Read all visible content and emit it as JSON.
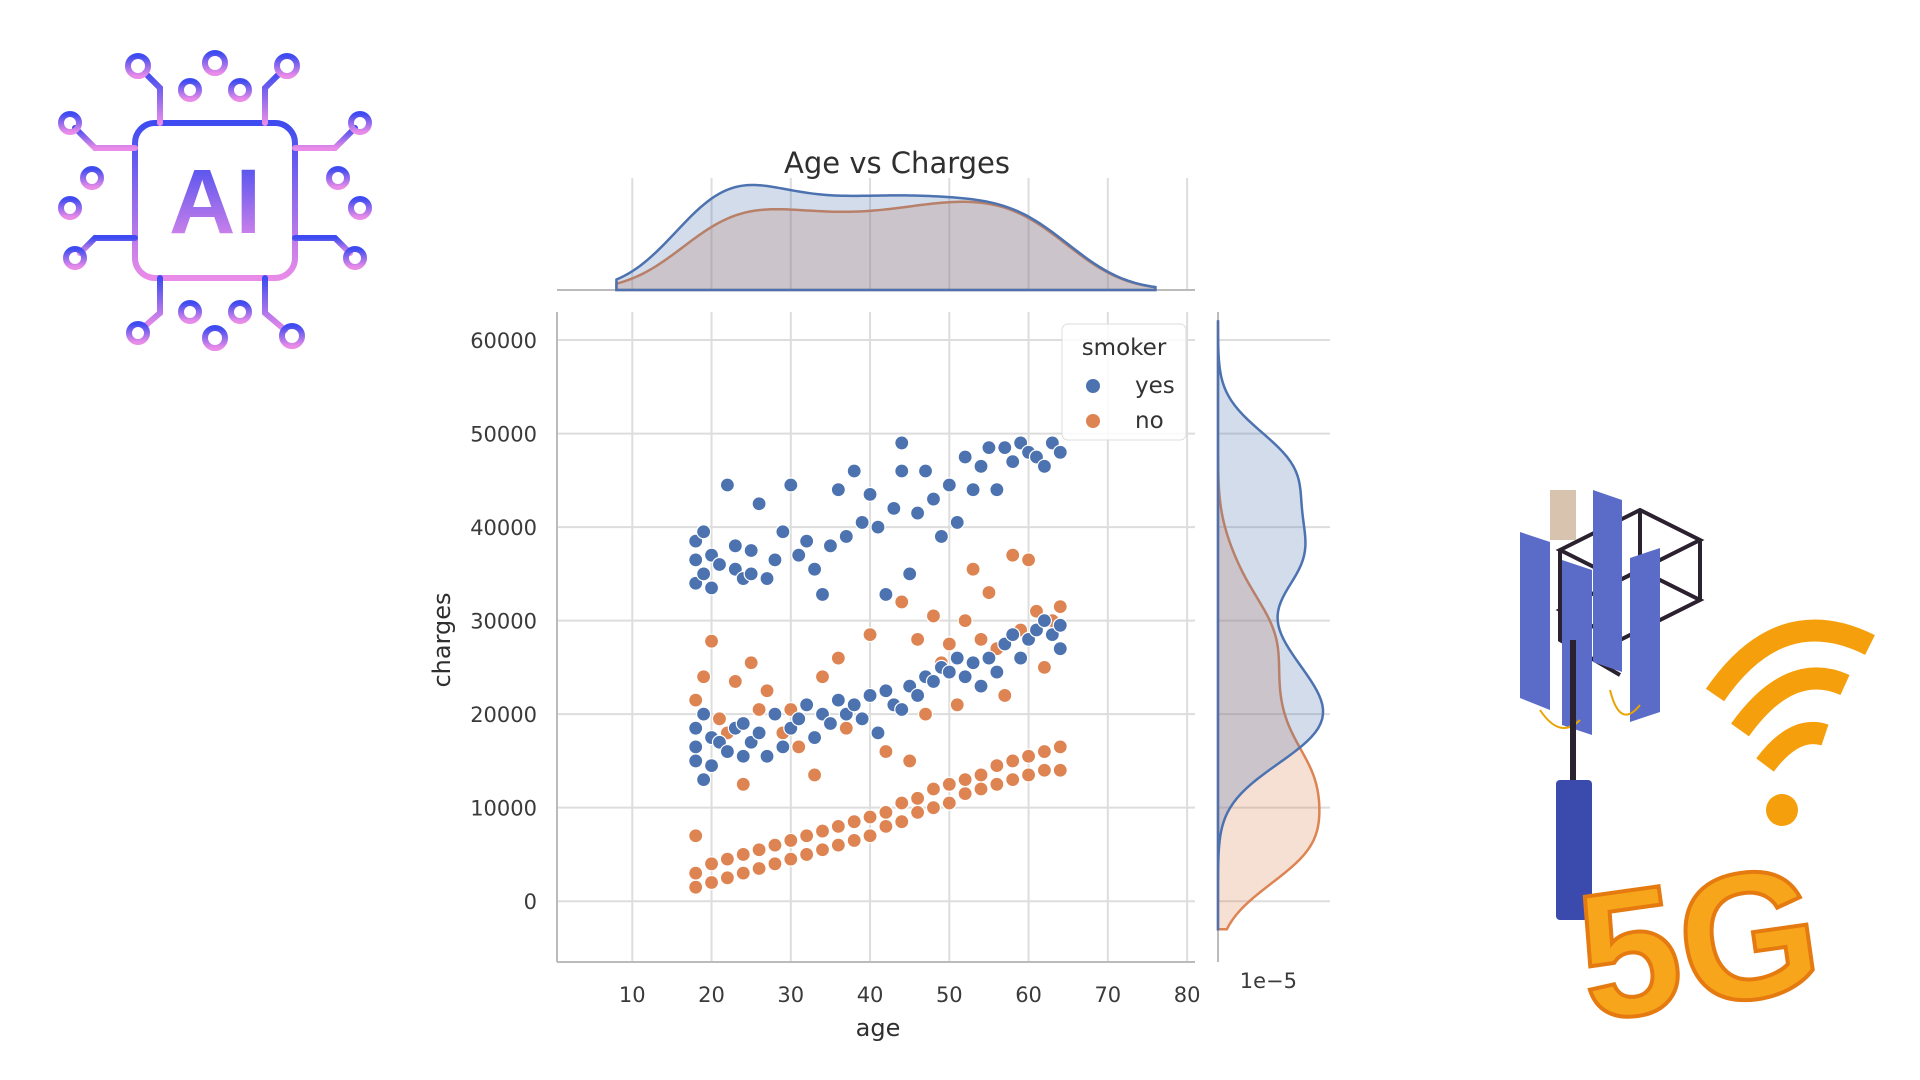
{
  "decorations": {
    "left_logo": {
      "text": "AI",
      "icon": "ai-chip-icon"
    },
    "right_logo": {
      "text": "5G",
      "icon": "5g-antenna-tower-icon"
    }
  },
  "colors": {
    "yes": "#4c72b0",
    "no": "#dd8452",
    "grid": "#dddddd",
    "axis": "#bbbbbb"
  },
  "chart_data": {
    "type": "scatter",
    "title": "Age vs Charges",
    "xlabel": "age",
    "ylabel": "charges",
    "xlim": [
      0.5,
      81
    ],
    "ylim": [
      -6500,
      63000
    ],
    "xticks": [
      10,
      20,
      30,
      40,
      50,
      60,
      70,
      80
    ],
    "yticks": [
      0,
      10000,
      20000,
      30000,
      40000,
      50000,
      60000
    ],
    "grid": true,
    "legend": {
      "title": "smoker",
      "position": "top-right",
      "entries": [
        "yes",
        "no"
      ]
    },
    "right_marginal_scale_label": "1e−5",
    "series": [
      {
        "name": "yes",
        "color": "#4c72b0",
        "points": [
          [
            18,
            34000
          ],
          [
            18,
            36500
          ],
          [
            18,
            38500
          ],
          [
            19,
            35000
          ],
          [
            19,
            39500
          ],
          [
            20,
            33500
          ],
          [
            20,
            37000
          ],
          [
            21,
            36000
          ],
          [
            22,
            44500
          ],
          [
            23,
            35500
          ],
          [
            23,
            38000
          ],
          [
            24,
            34500
          ],
          [
            25,
            37500
          ],
          [
            25,
            35000
          ],
          [
            26,
            42500
          ],
          [
            27,
            34500
          ],
          [
            28,
            36500
          ],
          [
            29,
            39500
          ],
          [
            30,
            44500
          ],
          [
            31,
            37000
          ],
          [
            32,
            38500
          ],
          [
            33,
            35500
          ],
          [
            34,
            32800
          ],
          [
            35,
            38000
          ],
          [
            36,
            44000
          ],
          [
            37,
            39000
          ],
          [
            38,
            46000
          ],
          [
            39,
            40500
          ],
          [
            40,
            43500
          ],
          [
            41,
            40000
          ],
          [
            42,
            32800
          ],
          [
            43,
            42000
          ],
          [
            44,
            46000
          ],
          [
            44,
            49000
          ],
          [
            45,
            35000
          ],
          [
            46,
            41500
          ],
          [
            47,
            46000
          ],
          [
            48,
            43000
          ],
          [
            49,
            39000
          ],
          [
            50,
            44500
          ],
          [
            51,
            40500
          ],
          [
            52,
            47500
          ],
          [
            53,
            44000
          ],
          [
            54,
            46500
          ],
          [
            55,
            48500
          ],
          [
            56,
            44000
          ],
          [
            57,
            48500
          ],
          [
            58,
            47000
          ],
          [
            59,
            49000
          ],
          [
            60,
            48000
          ],
          [
            61,
            47500
          ],
          [
            62,
            46500
          ],
          [
            63,
            49000
          ],
          [
            64,
            48000
          ],
          [
            18,
            15000
          ],
          [
            18,
            16500
          ],
          [
            18,
            18500
          ],
          [
            19,
            13000
          ],
          [
            19,
            20000
          ],
          [
            20,
            14500
          ],
          [
            20,
            17500
          ],
          [
            21,
            17000
          ],
          [
            22,
            16000
          ],
          [
            23,
            18500
          ],
          [
            24,
            15500
          ],
          [
            24,
            19000
          ],
          [
            25,
            17000
          ],
          [
            26,
            18000
          ],
          [
            27,
            15500
          ],
          [
            28,
            20000
          ],
          [
            29,
            16500
          ],
          [
            30,
            18500
          ],
          [
            31,
            19500
          ],
          [
            32,
            21000
          ],
          [
            33,
            17500
          ],
          [
            34,
            20000
          ],
          [
            35,
            19000
          ],
          [
            36,
            21500
          ],
          [
            37,
            20000
          ],
          [
            38,
            21000
          ],
          [
            39,
            19500
          ],
          [
            40,
            22000
          ],
          [
            41,
            18000
          ],
          [
            42,
            22500
          ],
          [
            43,
            21000
          ],
          [
            44,
            20500
          ],
          [
            45,
            23000
          ],
          [
            46,
            22000
          ],
          [
            47,
            24000
          ],
          [
            48,
            23500
          ],
          [
            49,
            25000
          ],
          [
            50,
            24500
          ],
          [
            51,
            26000
          ],
          [
            52,
            24000
          ],
          [
            53,
            25500
          ],
          [
            54,
            23000
          ],
          [
            55,
            26000
          ],
          [
            56,
            24500
          ],
          [
            57,
            27500
          ],
          [
            58,
            28500
          ],
          [
            59,
            26000
          ],
          [
            60,
            28000
          ],
          [
            61,
            29000
          ],
          [
            62,
            30000
          ],
          [
            63,
            28500
          ],
          [
            64,
            29500
          ],
          [
            64,
            27000
          ]
        ]
      },
      {
        "name": "no",
        "color": "#dd8452",
        "points": [
          [
            18,
            21500
          ],
          [
            19,
            24000
          ],
          [
            20,
            27800
          ],
          [
            21,
            19500
          ],
          [
            22,
            18000
          ],
          [
            23,
            23500
          ],
          [
            24,
            12500
          ],
          [
            25,
            25500
          ],
          [
            26,
            20500
          ],
          [
            27,
            22500
          ],
          [
            29,
            18000
          ],
          [
            30,
            20500
          ],
          [
            31,
            16500
          ],
          [
            33,
            13500
          ],
          [
            34,
            24000
          ],
          [
            36,
            26000
          ],
          [
            37,
            18500
          ],
          [
            39,
            19500
          ],
          [
            40,
            28500
          ],
          [
            42,
            16000
          ],
          [
            44,
            32000
          ],
          [
            45,
            15000
          ],
          [
            46,
            28000
          ],
          [
            47,
            20000
          ],
          [
            48,
            30500
          ],
          [
            49,
            25500
          ],
          [
            50,
            27500
          ],
          [
            51,
            21000
          ],
          [
            52,
            30000
          ],
          [
            53,
            35500
          ],
          [
            54,
            28000
          ],
          [
            55,
            33000
          ],
          [
            56,
            27000
          ],
          [
            57,
            22000
          ],
          [
            58,
            37000
          ],
          [
            59,
            29000
          ],
          [
            60,
            36500
          ],
          [
            61,
            31000
          ],
          [
            62,
            25000
          ],
          [
            63,
            30000
          ],
          [
            64,
            31500
          ],
          [
            18,
            1500
          ],
          [
            18,
            3000
          ],
          [
            18,
            7000
          ],
          [
            20,
            2000
          ],
          [
            20,
            4000
          ],
          [
            22,
            2500
          ],
          [
            22,
            4500
          ],
          [
            24,
            3000
          ],
          [
            24,
            5000
          ],
          [
            26,
            3500
          ],
          [
            26,
            5500
          ],
          [
            28,
            4000
          ],
          [
            28,
            6000
          ],
          [
            30,
            4500
          ],
          [
            30,
            6500
          ],
          [
            32,
            5000
          ],
          [
            32,
            7000
          ],
          [
            34,
            5500
          ],
          [
            34,
            7500
          ],
          [
            36,
            6000
          ],
          [
            36,
            8000
          ],
          [
            38,
            6500
          ],
          [
            38,
            8500
          ],
          [
            40,
            7000
          ],
          [
            40,
            9000
          ],
          [
            42,
            8000
          ],
          [
            42,
            9500
          ],
          [
            44,
            8500
          ],
          [
            44,
            10500
          ],
          [
            46,
            9500
          ],
          [
            46,
            11000
          ],
          [
            48,
            10000
          ],
          [
            48,
            12000
          ],
          [
            50,
            10500
          ],
          [
            50,
            12500
          ],
          [
            52,
            11500
          ],
          [
            52,
            13000
          ],
          [
            54,
            12000
          ],
          [
            54,
            13500
          ],
          [
            56,
            12500
          ],
          [
            56,
            14500
          ],
          [
            58,
            13000
          ],
          [
            58,
            15000
          ],
          [
            60,
            13500
          ],
          [
            60,
            15500
          ],
          [
            62,
            14000
          ],
          [
            62,
            16000
          ],
          [
            64,
            14000
          ],
          [
            64,
            16500
          ]
        ]
      }
    ]
  }
}
